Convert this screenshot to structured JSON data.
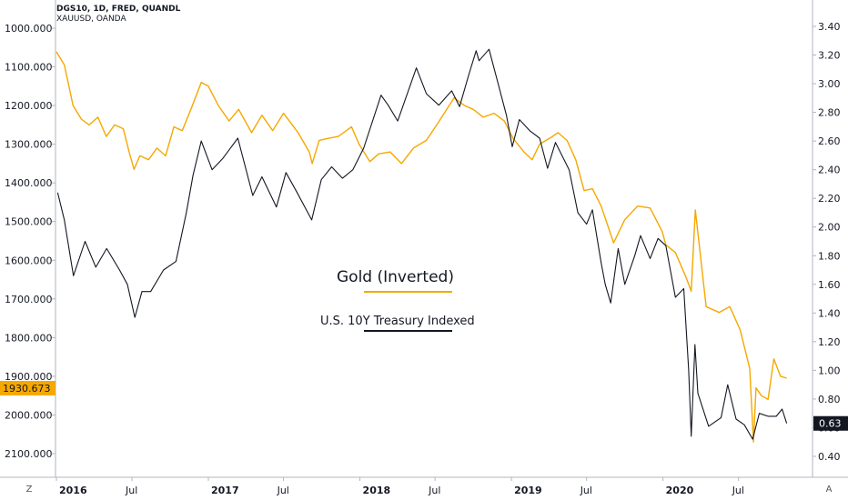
{
  "legend": {
    "main": "DGS10, 1D, FRED, QUANDL",
    "sub": "XAUUSD, OANDA"
  },
  "annotations": {
    "gold": "Gold (Inverted)",
    "treasury": "U.S. 10Y Treasury Indexed"
  },
  "corner": {
    "left": "Z",
    "right": "A"
  },
  "colors": {
    "gold": "#f5a800",
    "treasury": "#131722",
    "axis": "#b2b5be"
  },
  "chart_data": {
    "type": "line",
    "x_tick_labels": [
      "2016",
      "Jul",
      "2017",
      "Jul",
      "2018",
      "Jul",
      "2019",
      "Jul",
      "2020",
      "Jul"
    ],
    "left_axis": {
      "inverted": true,
      "ylim": [
        950,
        2150
      ],
      "tick_labels": [
        "1000.000",
        "1100.000",
        "1200.000",
        "1300.000",
        "1400.000",
        "1500.000",
        "1600.000",
        "1700.000",
        "1800.000",
        "1900.000",
        "2000.000",
        "2100.000"
      ],
      "last_value_label": "1930.673",
      "last_value": 1930.673
    },
    "right_axis": {
      "ylim": [
        0.28,
        3.48
      ],
      "tick_labels": [
        "3.40",
        "3.20",
        "3.00",
        "2.80",
        "2.60",
        "2.40",
        "2.20",
        "2.00",
        "1.80",
        "1.60",
        "1.40",
        "1.20",
        "1.00",
        "0.80",
        "0.60",
        "0.40"
      ],
      "last_value_label": "0.63",
      "last_value": 0.63
    },
    "series": [
      {
        "name": "XAUUSD",
        "axis": "left",
        "x": [
          "2016-01-01",
          "2016-01-20",
          "2016-02-10",
          "2016-03-01",
          "2016-03-20",
          "2016-04-10",
          "2016-04-30",
          "2016-05-20",
          "2016-06-10",
          "2016-06-24",
          "2016-07-06",
          "2016-07-20",
          "2016-08-10",
          "2016-08-30",
          "2016-09-20",
          "2016-10-10",
          "2016-10-30",
          "2016-11-20",
          "2016-12-15",
          "2017-01-01",
          "2017-01-25",
          "2017-02-20",
          "2017-03-15",
          "2017-04-15",
          "2017-05-10",
          "2017-06-05",
          "2017-07-01",
          "2017-07-15",
          "2017-08-05",
          "2017-09-01",
          "2017-09-08",
          "2017-09-25",
          "2017-10-15",
          "2017-11-10",
          "2017-12-12",
          "2017-12-30",
          "2018-01-25",
          "2018-02-15",
          "2018-03-15",
          "2018-04-11",
          "2018-05-10",
          "2018-06-10",
          "2018-07-05",
          "2018-08-16",
          "2018-09-10",
          "2018-10-01",
          "2018-10-25",
          "2018-11-20",
          "2018-12-15",
          "2019-01-05",
          "2019-01-31",
          "2019-02-20",
          "2019-03-10",
          "2019-04-10",
          "2019-04-23",
          "2019-05-15",
          "2019-06-05",
          "2019-06-25",
          "2019-07-15",
          "2019-08-05",
          "2019-09-04",
          "2019-10-01",
          "2019-11-01",
          "2019-12-01",
          "2019-12-30",
          "2020-01-08",
          "2020-01-31",
          "2020-02-24",
          "2020-03-09",
          "2020-03-19",
          "2020-04-14",
          "2020-05-15",
          "2020-06-10",
          "2020-07-05",
          "2020-07-28",
          "2020-08-06",
          "2020-08-12",
          "2020-08-25",
          "2020-09-10",
          "2020-09-24",
          "2020-10-10",
          "2020-10-25"
        ],
        "values": [
          1061,
          1095,
          1200,
          1235,
          1250,
          1230,
          1280,
          1250,
          1260,
          1320,
          1365,
          1330,
          1340,
          1310,
          1330,
          1255,
          1265,
          1210,
          1140,
          1150,
          1200,
          1240,
          1210,
          1270,
          1225,
          1265,
          1220,
          1240,
          1270,
          1320,
          1350,
          1290,
          1285,
          1280,
          1255,
          1300,
          1345,
          1325,
          1320,
          1350,
          1310,
          1290,
          1250,
          1180,
          1200,
          1210,
          1230,
          1220,
          1240,
          1285,
          1320,
          1340,
          1300,
          1280,
          1270,
          1290,
          1340,
          1420,
          1415,
          1460,
          1555,
          1495,
          1460,
          1465,
          1525,
          1560,
          1580,
          1640,
          1680,
          1470,
          1720,
          1735,
          1720,
          1780,
          1880,
          2070,
          1930,
          1950,
          1960,
          1855,
          1900,
          1905
        ]
      },
      {
        "name": "DGS10",
        "axis": "right",
        "x": [
          "2016-01-04",
          "2016-01-20",
          "2016-02-11",
          "2016-03-10",
          "2016-04-05",
          "2016-05-01",
          "2016-06-01",
          "2016-06-20",
          "2016-07-08",
          "2016-07-25",
          "2016-08-15",
          "2016-09-15",
          "2016-10-15",
          "2016-11-09",
          "2016-11-25",
          "2016-12-15",
          "2017-01-10",
          "2017-02-05",
          "2017-03-13",
          "2017-04-18",
          "2017-05-10",
          "2017-06-14",
          "2017-07-07",
          "2017-08-01",
          "2017-09-07",
          "2017-09-30",
          "2017-10-25",
          "2017-11-20",
          "2017-12-15",
          "2018-01-10",
          "2018-02-21",
          "2018-03-10",
          "2018-04-02",
          "2018-05-17",
          "2018-06-10",
          "2018-07-10",
          "2018-08-10",
          "2018-08-29",
          "2018-09-20",
          "2018-10-08",
          "2018-10-15",
          "2018-11-08",
          "2018-11-30",
          "2018-12-20",
          "2019-01-03",
          "2019-01-20",
          "2019-02-15",
          "2019-03-10",
          "2019-03-29",
          "2019-04-17",
          "2019-05-20",
          "2019-06-10",
          "2019-07-01",
          "2019-07-15",
          "2019-08-05",
          "2019-08-15",
          "2019-08-28",
          "2019-09-15",
          "2019-10-01",
          "2019-10-25",
          "2019-11-08",
          "2019-12-01",
          "2019-12-20",
          "2020-01-08",
          "2020-01-31",
          "2020-02-20",
          "2020-03-03",
          "2020-03-09",
          "2020-03-18",
          "2020-03-25",
          "2020-04-20",
          "2020-05-20",
          "2020-06-05",
          "2020-06-25",
          "2020-07-15",
          "2020-08-04",
          "2020-08-20",
          "2020-09-10",
          "2020-09-30",
          "2020-10-14",
          "2020-10-25"
        ],
        "values": [
          2.24,
          2.05,
          1.66,
          1.9,
          1.72,
          1.85,
          1.7,
          1.6,
          1.37,
          1.55,
          1.55,
          1.7,
          1.76,
          2.1,
          2.36,
          2.6,
          2.4,
          2.48,
          2.62,
          2.22,
          2.35,
          2.14,
          2.38,
          2.25,
          2.05,
          2.33,
          2.42,
          2.34,
          2.4,
          2.55,
          2.92,
          2.85,
          2.74,
          3.11,
          2.93,
          2.85,
          2.95,
          2.84,
          3.06,
          3.23,
          3.16,
          3.24,
          3.0,
          2.78,
          2.56,
          2.75,
          2.67,
          2.62,
          2.41,
          2.59,
          2.4,
          2.1,
          2.02,
          2.12,
          1.75,
          1.6,
          1.47,
          1.85,
          1.6,
          1.8,
          1.94,
          1.78,
          1.92,
          1.87,
          1.51,
          1.57,
          1.0,
          0.54,
          1.18,
          0.84,
          0.61,
          0.67,
          0.9,
          0.66,
          0.62,
          0.52,
          0.7,
          0.68,
          0.68,
          0.73,
          0.63
        ]
      }
    ]
  }
}
